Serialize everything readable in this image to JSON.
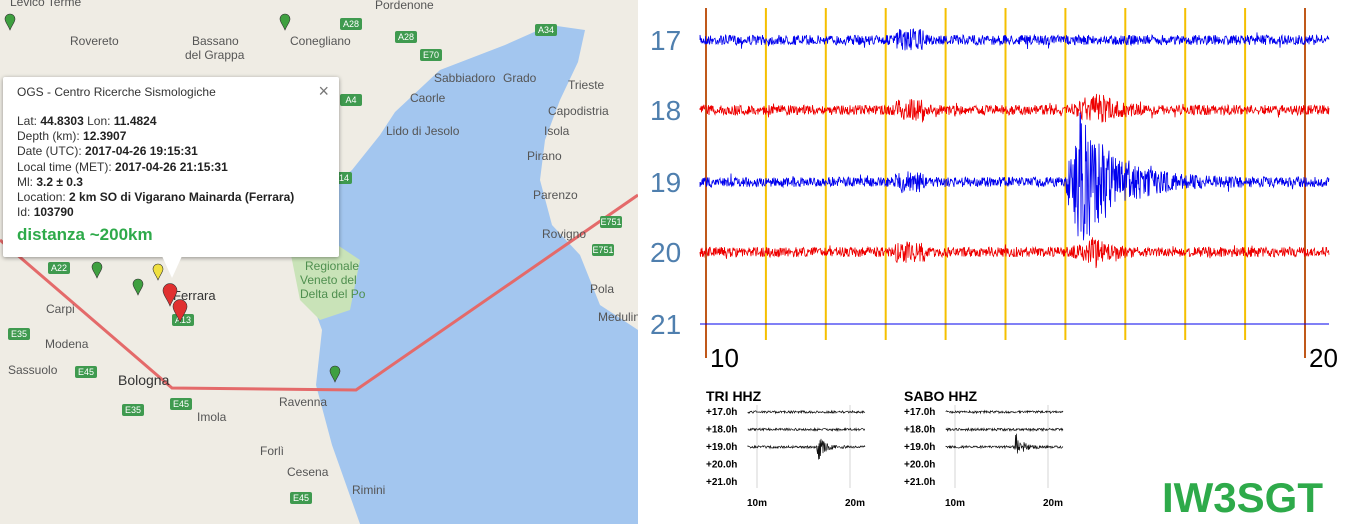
{
  "map": {
    "labels": [
      "Levico Terme",
      "Rovereto",
      "Bassano",
      "del Grappa",
      "Conegliano",
      "Pordenone",
      "Sabbiadoro",
      "Grado",
      "Caorle",
      "Trieste",
      "Capodistria",
      "Isola",
      "Pirano",
      "Lido di Jesolo",
      "Parenzo",
      "Rovigno",
      "Pola",
      "Medulin",
      "Carpi",
      "Modena",
      "Sassuolo",
      "Bologna",
      "Imola",
      "Ravenna",
      "Forlì",
      "Cesena",
      "Rimini",
      "Ferrara",
      "Regionale",
      "Veneto del",
      "Delta del Po"
    ],
    "roads": [
      "A28",
      "A28",
      "E70",
      "A34",
      "A4",
      "E751",
      "E751",
      "A22",
      "E35",
      "E45",
      "A13",
      "E45",
      "E35",
      "A14",
      "E45"
    ]
  },
  "popup": {
    "title": "OGS - Centro Ricerche Sismologiche",
    "close": "×",
    "lat": {
      "label": "Lat:",
      "value": "44.8303"
    },
    "lon": {
      "label": "Lon:",
      "value": "11.4824"
    },
    "fields": [
      {
        "label": "Depth (km):",
        "value": "12.3907"
      },
      {
        "label": "Date (UTC):",
        "value": "2017-04-26 19:15:31"
      },
      {
        "label": "Local time (MET):",
        "value": "2017-04-26 21:15:31"
      },
      {
        "label": "Ml:",
        "value": "3.2 ± 0.3"
      },
      {
        "label": "Location:",
        "value": "2 km SO di Vigarano Mainarda (Ferrara)"
      },
      {
        "label": "Id:",
        "value": "103790"
      }
    ],
    "distance": "distanza ~200km"
  },
  "seismogram": {
    "hours": [
      "17",
      "18",
      "19",
      "20",
      "21"
    ],
    "minutes": [
      "10",
      "20"
    ]
  },
  "thumbnails": [
    {
      "title": "TRI HHZ",
      "hours": [
        "+17.0h",
        "+18.0h",
        "+19.0h",
        "+20.0h",
        "+21.0h"
      ],
      "minutes": [
        "10m",
        "20m"
      ]
    },
    {
      "title": "SABO HHZ",
      "hours": [
        "+17.0h",
        "+18.0h",
        "+19.0h",
        "+20.0h",
        "+21.0h"
      ],
      "minutes": [
        "10m",
        "20m"
      ]
    }
  ],
  "callsign": "IW3SGT"
}
